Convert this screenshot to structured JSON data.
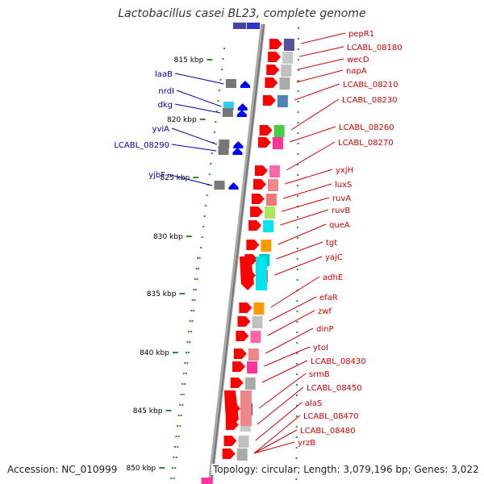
{
  "title": "Lactobacillus casei BL23, complete genome",
  "footer": {
    "accession": "Accession: NC_010999",
    "topology": "Topology: circular; Length: 3,079,196 bp; Genes: 3,022"
  },
  "colors": {
    "backbone": "#888888",
    "forward_label": "#cc0000",
    "reverse_label": "#0000aa",
    "tick": "#2e8b2e",
    "arrow_forward": "#ff0000",
    "arrow_reverse": "#0000ff"
  },
  "ticks": [
    "815 kbp",
    "820 kbp",
    "825 kbp",
    "830 kbp",
    "835 kbp",
    "840 kbp",
    "845 kbp",
    "850 kbp"
  ],
  "forward_genes": [
    "pepR1",
    "LCABL_08180",
    "wecD",
    "napA",
    "LCABL_08210",
    "LCABL_08230",
    "LCABL_08260",
    "LCABL_08270",
    "yxjH",
    "luxS",
    "ruvA",
    "ruvB",
    "queA",
    "tgt",
    "yajC",
    "adhE",
    "efaR",
    "zwf",
    "dinP",
    "ytoI",
    "LCABL_08430",
    "srmB",
    "LCABL_08450",
    "alaS",
    "LCABL_08470",
    "LCABL_08480",
    "yrzB"
  ],
  "reverse_genes": [
    "laaB",
    "nrdI",
    "dkg",
    "yviA",
    "LCABL_08290",
    "yjbF"
  ]
}
